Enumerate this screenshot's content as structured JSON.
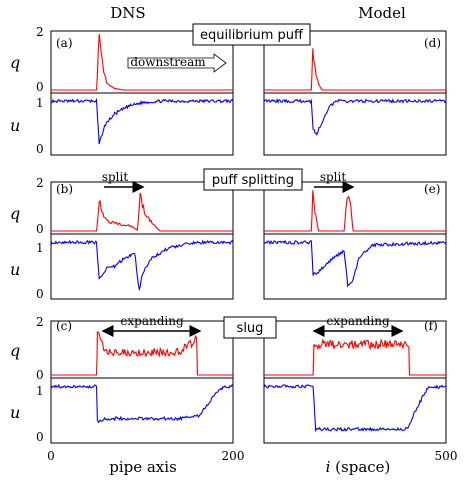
{
  "column_titles": {
    "left": "DNS",
    "right": "Model"
  },
  "row_labels": [
    {
      "name": "equilibrium puff",
      "left_tag": "(a)",
      "right_tag": "(d)"
    },
    {
      "name": "puff splitting",
      "left_tag": "(b)",
      "right_tag": "(e)"
    },
    {
      "name": "slug",
      "left_tag": "(c)",
      "right_tag": "(f)"
    }
  ],
  "annotations": {
    "downstream": "downstream",
    "split_left": "split",
    "split_right": "split",
    "expanding_left": "expanding",
    "expanding_right": "expanding"
  },
  "axis_labels": {
    "q": "q",
    "u": "u",
    "x_left": "pipe axis",
    "x_right_var": "i",
    "x_right_rest": " (space)"
  },
  "ticks": {
    "q": [
      "0",
      "2"
    ],
    "u": [
      "0",
      "1"
    ],
    "x_left": [
      "0",
      "200"
    ],
    "x_right": [
      "500"
    ]
  },
  "colors": {
    "q": "#ff0000",
    "u": "#0000ff",
    "axes": "#000000",
    "zero_line": "#000000"
  },
  "chart_data": [
    {
      "type": "line",
      "panel": "(a)",
      "x_range": [
        0,
        200
      ],
      "q_ylim": [
        0,
        2
      ],
      "u_ylim": [
        0,
        1.1
      ],
      "series": [
        {
          "name": "q",
          "x": [
            0,
            50,
            53,
            55,
            58,
            62,
            70,
            80,
            200
          ],
          "values": [
            0,
            0,
            2.0,
            1.2,
            0.6,
            0.2,
            0.05,
            0,
            0
          ]
        },
        {
          "name": "u",
          "x": [
            0,
            50,
            53,
            56,
            60,
            70,
            85,
            100,
            120,
            200
          ],
          "values": [
            1.0,
            1.0,
            0.15,
            0.35,
            0.55,
            0.75,
            0.9,
            0.97,
            1.0,
            1.0
          ]
        }
      ]
    },
    {
      "type": "line",
      "panel": "(d)",
      "x_range": [
        0,
        500
      ],
      "q_ylim": [
        0,
        2
      ],
      "u_ylim": [
        0,
        1.1
      ],
      "series": [
        {
          "name": "q",
          "x": [
            0,
            130,
            134,
            138,
            143,
            150,
            160,
            500
          ],
          "values": [
            0,
            0,
            1.5,
            1.0,
            0.6,
            0.2,
            0,
            0
          ]
        },
        {
          "name": "u",
          "x": [
            0,
            130,
            135,
            145,
            160,
            180,
            200,
            500
          ],
          "values": [
            1.0,
            1.0,
            0.45,
            0.35,
            0.6,
            0.9,
            1.0,
            1.0
          ]
        }
      ]
    },
    {
      "type": "line",
      "panel": "(b)",
      "x_range": [
        0,
        200
      ],
      "q_ylim": [
        0,
        2
      ],
      "u_ylim": [
        0,
        1.1
      ],
      "series": [
        {
          "name": "q",
          "x": [
            0,
            50,
            53,
            58,
            65,
            75,
            85,
            95,
            98,
            104,
            112,
            120,
            200
          ],
          "values": [
            0,
            0,
            1.3,
            0.6,
            0.4,
            0.3,
            0.25,
            0.05,
            1.5,
            0.7,
            0.3,
            0,
            0
          ]
        },
        {
          "name": "u",
          "x": [
            0,
            50,
            53,
            60,
            70,
            80,
            92,
            97,
            100,
            110,
            130,
            160,
            200
          ],
          "values": [
            1.0,
            1.0,
            0.3,
            0.5,
            0.55,
            0.7,
            0.8,
            0.1,
            0.4,
            0.7,
            0.9,
            1.0,
            1.0
          ]
        }
      ]
    },
    {
      "type": "line",
      "panel": "(e)",
      "x_range": [
        0,
        500
      ],
      "q_ylim": [
        0,
        2
      ],
      "u_ylim": [
        0,
        1.1
      ],
      "series": [
        {
          "name": "q",
          "x": [
            0,
            130,
            134,
            140,
            150,
            220,
            228,
            238,
            245,
            500
          ],
          "values": [
            0,
            0,
            1.6,
            0.8,
            0,
            0,
            1.5,
            1.2,
            0,
            0
          ]
        },
        {
          "name": "u",
          "x": [
            0,
            130,
            135,
            150,
            170,
            200,
            220,
            230,
            245,
            260,
            300,
            500
          ],
          "values": [
            1.0,
            1.0,
            0.4,
            0.45,
            0.6,
            0.75,
            0.85,
            0.2,
            0.3,
            0.7,
            0.95,
            1.0
          ]
        }
      ]
    },
    {
      "type": "line",
      "panel": "(c)",
      "x_range": [
        0,
        200
      ],
      "q_ylim": [
        0,
        2
      ],
      "u_ylim": [
        0,
        1.1
      ],
      "series": [
        {
          "name": "q",
          "x": [
            0,
            50,
            51,
            60,
            80,
            100,
            120,
            140,
            160,
            161,
            200
          ],
          "values": [
            0,
            0,
            1.6,
            0.9,
            0.9,
            0.9,
            0.9,
            0.9,
            1.4,
            0,
            0
          ]
        },
        {
          "name": "u",
          "x": [
            0,
            50,
            51,
            60,
            100,
            140,
            162,
            170,
            180,
            190,
            200
          ],
          "values": [
            1.0,
            1.0,
            0.35,
            0.4,
            0.4,
            0.4,
            0.45,
            0.6,
            0.85,
            0.98,
            1.0
          ]
        }
      ]
    },
    {
      "type": "line",
      "panel": "(f)",
      "x_range": [
        0,
        500
      ],
      "q_ylim": [
        0,
        2
      ],
      "u_ylim": [
        0,
        1.1
      ],
      "series": [
        {
          "name": "q",
          "x": [
            0,
            135,
            137,
            200,
            300,
            398,
            400,
            500
          ],
          "values": [
            0,
            0,
            1.2,
            1.2,
            1.2,
            1.2,
            0,
            0
          ]
        },
        {
          "name": "u",
          "x": [
            0,
            135,
            142,
            200,
            300,
            395,
            420,
            450,
            500
          ],
          "values": [
            1.0,
            1.0,
            0.2,
            0.2,
            0.2,
            0.2,
            0.6,
            0.98,
            1.0
          ]
        }
      ]
    }
  ]
}
